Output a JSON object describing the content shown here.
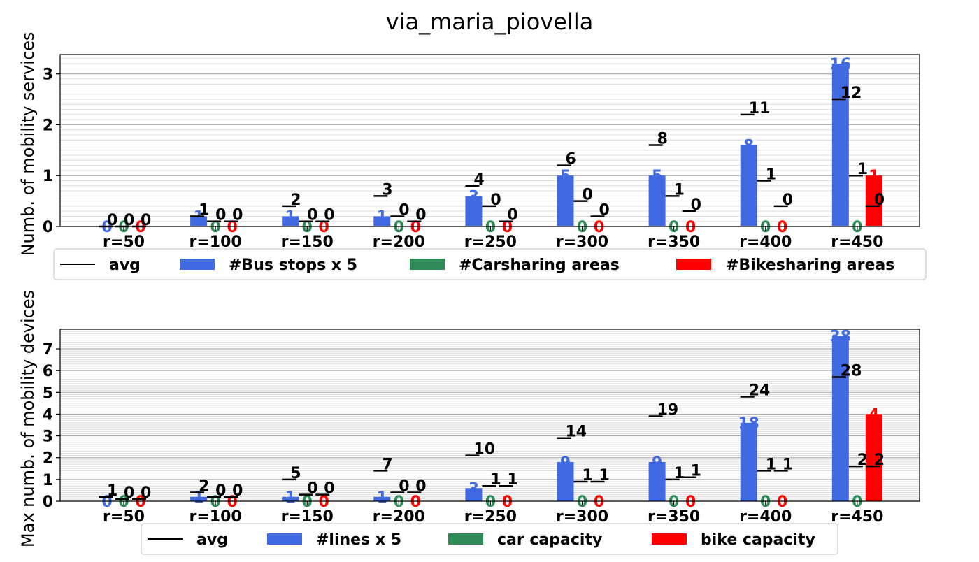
{
  "title": "via_maria_piovella",
  "colors": {
    "avg": "#000000",
    "bus": "#4169E1",
    "car": "#2E8B57",
    "bike": "#FF0000",
    "grid": "#b0b0b0"
  },
  "chart_data": [
    {
      "type": "bar",
      "title": "via_maria_piovella",
      "ylabel": "Numb. of mobility services",
      "ylim": [
        0,
        3.38
      ],
      "yticks": [
        "0",
        "1",
        "2",
        "3"
      ],
      "grid": "y-major-and-minor",
      "categories": [
        "r=50",
        "r=100",
        "r=150",
        "r=200",
        "r=250",
        "r=300",
        "r=350",
        "r=400",
        "r=450"
      ],
      "series": [
        {
          "name": "#Bus stops x 5",
          "color": "#4169E1",
          "values": [
            0,
            0.2,
            0.2,
            0.2,
            0.6,
            1.0,
            1.0,
            1.6,
            3.2
          ],
          "labels": [
            "0",
            "1",
            "1",
            "1",
            "3",
            "5",
            "5",
            "8",
            "16"
          ]
        },
        {
          "name": "#Carsharing areas",
          "color": "#2E8B57",
          "values": [
            0,
            0,
            0,
            0,
            0,
            0,
            0,
            0,
            0
          ],
          "labels": [
            "0",
            "0",
            "0",
            "0",
            "0",
            "0",
            "0",
            "0",
            "0"
          ]
        },
        {
          "name": "#Bikesharing areas",
          "color": "#FF0000",
          "values": [
            0,
            0,
            0,
            0,
            0,
            0,
            0,
            0,
            1
          ],
          "labels": [
            "0",
            "0",
            "0",
            "0",
            "0",
            "0",
            "0",
            "0",
            "1"
          ]
        }
      ],
      "avg": {
        "name": "avg",
        "bus": {
          "values": [
            0,
            0.2,
            0.4,
            0.6,
            0.8,
            1.2,
            1.6,
            2.2,
            2.5
          ],
          "labels": [
            "0",
            "1",
            "2",
            "3",
            "4",
            "6",
            "8",
            "11",
            "12"
          ]
        },
        "car": {
          "values": [
            0,
            0.1,
            0.1,
            0.2,
            0.4,
            0.5,
            0.6,
            0.9,
            1.0
          ],
          "labels": [
            "0",
            "0",
            "0",
            "0",
            "0",
            "0",
            "1",
            "1",
            "1"
          ]
        },
        "bike": {
          "values": [
            0,
            0.1,
            0.1,
            0.1,
            0.1,
            0.2,
            0.3,
            0.4,
            0.4
          ],
          "labels": [
            "0",
            "0",
            "0",
            "0",
            "0",
            "0",
            "0",
            "0",
            "0"
          ]
        }
      },
      "legend": [
        "avg",
        "#Bus stops x 5",
        "#Carsharing areas",
        "#Bikesharing areas"
      ]
    },
    {
      "type": "bar",
      "title": "",
      "ylabel": "Max numb. of mobility devices",
      "ylim": [
        0,
        7.9
      ],
      "yticks": [
        "0",
        "1",
        "2",
        "3",
        "4",
        "5",
        "6",
        "7"
      ],
      "grid": "y-major-and-minor",
      "categories": [
        "r=50",
        "r=100",
        "r=150",
        "r=200",
        "r=250",
        "r=300",
        "r=350",
        "r=400",
        "r=450"
      ],
      "series": [
        {
          "name": "#lines x 5",
          "color": "#4169E1",
          "values": [
            0,
            0.2,
            0.2,
            0.2,
            0.6,
            1.8,
            1.8,
            3.6,
            7.6
          ],
          "labels": [
            "0",
            "1",
            "1",
            "1",
            "3",
            "9",
            "9",
            "18",
            "38"
          ]
        },
        {
          "name": "car capacity",
          "color": "#2E8B57",
          "values": [
            0,
            0,
            0,
            0,
            0,
            0,
            0,
            0,
            0
          ],
          "labels": [
            "0",
            "0",
            "0",
            "0",
            "0",
            "0",
            "0",
            "0",
            "0"
          ]
        },
        {
          "name": "bike capacity",
          "color": "#FF0000",
          "values": [
            0,
            0,
            0,
            0,
            0,
            0,
            0,
            0,
            4
          ],
          "labels": [
            "0",
            "0",
            "0",
            "0",
            "0",
            "0",
            "0",
            "0",
            "4"
          ]
        }
      ],
      "avg": {
        "name": "avg",
        "bus": {
          "values": [
            0.2,
            0.4,
            1.0,
            1.4,
            2.1,
            2.9,
            3.9,
            4.8,
            5.7
          ],
          "labels": [
            "1",
            "2",
            "5",
            "7",
            "10",
            "14",
            "19",
            "24",
            "28"
          ]
        },
        "car": {
          "values": [
            0.1,
            0.2,
            0.3,
            0.4,
            0.7,
            0.9,
            1.0,
            1.4,
            1.6
          ],
          "labels": [
            "0",
            "0",
            "0",
            "0",
            "1",
            "1",
            "1",
            "1",
            "2"
          ]
        },
        "bike": {
          "values": [
            0.1,
            0.2,
            0.3,
            0.4,
            0.7,
            0.9,
            1.1,
            1.4,
            1.6
          ],
          "labels": [
            "0",
            "0",
            "0",
            "0",
            "1",
            "1",
            "1",
            "1",
            "2"
          ]
        }
      },
      "legend": [
        "avg",
        "#lines x 5",
        "car capacity",
        "bike capacity"
      ]
    }
  ]
}
